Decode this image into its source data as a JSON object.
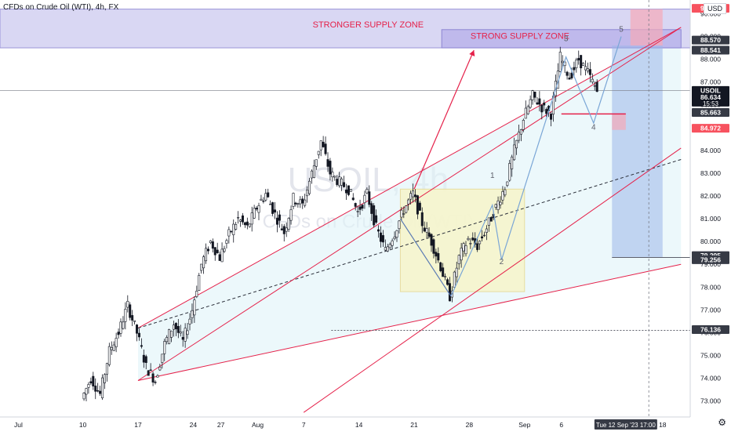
{
  "header": {
    "title": "CFDs on Crude Oil (WTI), 4h, FX",
    "currency": "USD",
    "watermark_symbol": "USOIL, 4h",
    "watermark_desc": "CFDs on Crude Oil (WTI)"
  },
  "chart_data": {
    "type": "candlestick",
    "title": "CFDs on Crude Oil (WTI), 4h, FX",
    "ylabel": "USD",
    "ylim": [
      72.3,
      90.6
    ],
    "y_ticks": [
      73.0,
      74.0,
      75.0,
      76.0,
      77.0,
      78.0,
      79.0,
      80.0,
      81.0,
      82.0,
      83.0,
      84.0,
      85.0,
      86.0,
      87.0,
      88.0,
      89.0,
      90.0
    ],
    "y_tick_labels": [
      "73.000",
      "74.000",
      "75.000",
      "76.000",
      "77.000",
      "78.000",
      "79.000",
      "80.000",
      "81.000",
      "82.000",
      "83.000",
      "84.000",
      "85.000",
      "86.000",
      "87.000",
      "88.000",
      "89.000",
      "90.000"
    ],
    "x_tick_labels": [
      "Jul",
      "10",
      "17",
      "24",
      "27",
      "Aug",
      "7",
      "14",
      "21",
      "28",
      "Sep",
      "6",
      "Tue 12 Sep '23  17:00",
      "18"
    ],
    "x_tick_pos": [
      2,
      9,
      15,
      21,
      24,
      28,
      33,
      39,
      45,
      51,
      57,
      61,
      68,
      72
    ],
    "price_path": [
      [
        9,
        73.1
      ],
      [
        10,
        74.0
      ],
      [
        11,
        73.3
      ],
      [
        12,
        75.2
      ],
      [
        13,
        76.0
      ],
      [
        14,
        77.2
      ],
      [
        15,
        76.0
      ],
      [
        16,
        74.5
      ],
      [
        17,
        73.9
      ],
      [
        18,
        75.5
      ],
      [
        19,
        76.4
      ],
      [
        20,
        75.6
      ],
      [
        21,
        77.0
      ],
      [
        22,
        79.0
      ],
      [
        23,
        80.0
      ],
      [
        24,
        79.3
      ],
      [
        25,
        80.3
      ],
      [
        26,
        81.0
      ],
      [
        27,
        80.6
      ],
      [
        28,
        81.5
      ],
      [
        29,
        82.1
      ],
      [
        30,
        81.2
      ],
      [
        31,
        80.4
      ],
      [
        32,
        81.9
      ],
      [
        33,
        81.6
      ],
      [
        34,
        83.0
      ],
      [
        35,
        84.4
      ],
      [
        36,
        83.0
      ],
      [
        37,
        82.6
      ],
      [
        38,
        82.3
      ],
      [
        39,
        81.3
      ],
      [
        40,
        82.1
      ],
      [
        41,
        80.6
      ],
      [
        42,
        79.6
      ],
      [
        43,
        80.4
      ],
      [
        44,
        81.4
      ],
      [
        45,
        82.1
      ],
      [
        46,
        80.8
      ],
      [
        47,
        80.0
      ],
      [
        48,
        78.9
      ],
      [
        49,
        77.6
      ],
      [
        50,
        79.3
      ],
      [
        51,
        80.1
      ],
      [
        52,
        79.8
      ],
      [
        53,
        80.6
      ],
      [
        54,
        81.5
      ],
      [
        55,
        82.4
      ],
      [
        56,
        84.0
      ],
      [
        57,
        85.4
      ],
      [
        58,
        86.4
      ],
      [
        59,
        85.9
      ],
      [
        60,
        85.6
      ],
      [
        61,
        88.1
      ],
      [
        62,
        87.2
      ],
      [
        63,
        88.0
      ],
      [
        64,
        87.4
      ],
      [
        65,
        86.6
      ]
    ],
    "channels": [
      {
        "name": "upper-channel",
        "x": [
          15,
          74
        ],
        "y": [
          76.2,
          89.4
        ]
      },
      {
        "name": "mid-channel",
        "x": [
          15,
          74
        ],
        "y": [
          76.2,
          83.6
        ]
      },
      {
        "name": "lower-channel",
        "x": [
          15,
          74
        ],
        "y": [
          73.9,
          79.0
        ]
      }
    ],
    "annotations": [
      {
        "label": "STRONGER SUPPLY ZONE",
        "y_range": [
          88.5,
          90.2
        ],
        "color": "#e5214a"
      },
      {
        "label": "STRONG SUPPLY ZONE",
        "y_range": [
          88.5,
          89.3
        ],
        "color": "#e5214a"
      },
      {
        "label": "1",
        "x": 53.5,
        "y": 82.8
      },
      {
        "label": "2",
        "x": 54.5,
        "y": 79.0
      },
      {
        "label": "3",
        "x": 61.5,
        "y": 88.8
      },
      {
        "label": "4",
        "x": 64.5,
        "y": 84.9
      },
      {
        "label": "5",
        "x": 67.5,
        "y": 89.2
      }
    ],
    "price_labels": [
      {
        "value": "90.235",
        "color": "#f7525f",
        "text_color": "#ffffff"
      },
      {
        "value": "88.570",
        "color": "#363a45",
        "text_color": "#ffffff"
      },
      {
        "value": "88.541",
        "color": "#363a45",
        "text_color": "#ffffff"
      },
      {
        "value": "USOIL",
        "sub": "86.634",
        "sub2": "15:53",
        "color": "#131722",
        "text_color": "#ffffff"
      },
      {
        "value": "85.663",
        "color": "#363a45",
        "text_color": "#ffffff"
      },
      {
        "value": "84.972",
        "color": "#f7525f",
        "text_color": "#ffffff"
      },
      {
        "value": "79.295",
        "color": "#363a45",
        "text_color": "#ffffff"
      },
      {
        "value": "79.256",
        "color": "#363a45",
        "text_color": "#ffffff"
      },
      {
        "value": "76.136",
        "color": "#363a45",
        "text_color": "#ffffff"
      }
    ],
    "grid": false,
    "legend": "none"
  }
}
